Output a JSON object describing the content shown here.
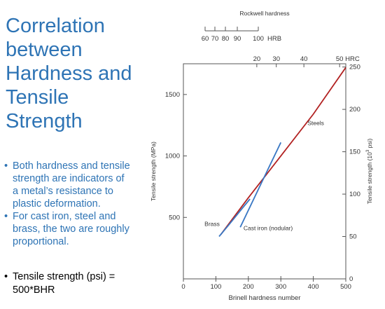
{
  "slide": {
    "title_lines": [
      "Correlation",
      "between",
      "Hardness and",
      "Tensile",
      "Strength"
    ],
    "bullets": [
      {
        "lines": [
          "Both hardness and tensile",
          "strength are indicators of",
          "a metal’s resistance to",
          "plastic deformation."
        ]
      },
      {
        "lines": [
          "For cast iron, steel and",
          "brass, the two are roughly",
          "proportional."
        ]
      }
    ],
    "note_lines": [
      "Tensile strength  (psi) =",
      "500*BHR"
    ],
    "bullet_glyph": "•",
    "title_color": "#2e74b5",
    "text_color": "#2e74b5"
  },
  "chart_data": {
    "type": "line",
    "xlabel": "Brinell hardness number",
    "ylabel_left": "Tensile strength (MPa)",
    "ylabel_right_main": "Tensile strength (10",
    "ylabel_right_sup": "3",
    "ylabel_right_end": " psi)",
    "xlim": [
      0,
      500
    ],
    "ylim": [
      0,
      1750
    ],
    "x_ticks": [
      "0",
      "100",
      "200",
      "300",
      "400",
      "500"
    ],
    "y_ticks_left": [
      "500",
      "1000",
      "1500"
    ],
    "y_ticks_right": [
      "0",
      "50",
      "100",
      "150",
      "200",
      "250"
    ],
    "hrc_ticks": [
      "20",
      "30",
      "40",
      "50"
    ],
    "hrc_label": "HRC",
    "hrb_ticks": [
      "60",
      "70",
      "80",
      "90",
      "100"
    ],
    "hrb_label": "HRB",
    "rockwell_title": "Rockwell hardness",
    "series": [
      {
        "name": "Steels",
        "color": "#b22222",
        "x": [
          115,
          200,
          300,
          400,
          500
        ],
        "y": [
          360,
          660,
          1000,
          1340,
          1720
        ]
      },
      {
        "name": "Brass",
        "color": "#3a78c4",
        "x": [
          110,
          140,
          180,
          205
        ],
        "y": [
          345,
          440,
          570,
          650
        ]
      },
      {
        "name": "Cast iron (nodular)",
        "color": "#3a78c4",
        "x": [
          175,
          240,
          300
        ],
        "y": [
          420,
          780,
          1110
        ]
      }
    ],
    "annotations": [
      "Steels",
      "Brass",
      "Cast iron (nodular)"
    ]
  }
}
